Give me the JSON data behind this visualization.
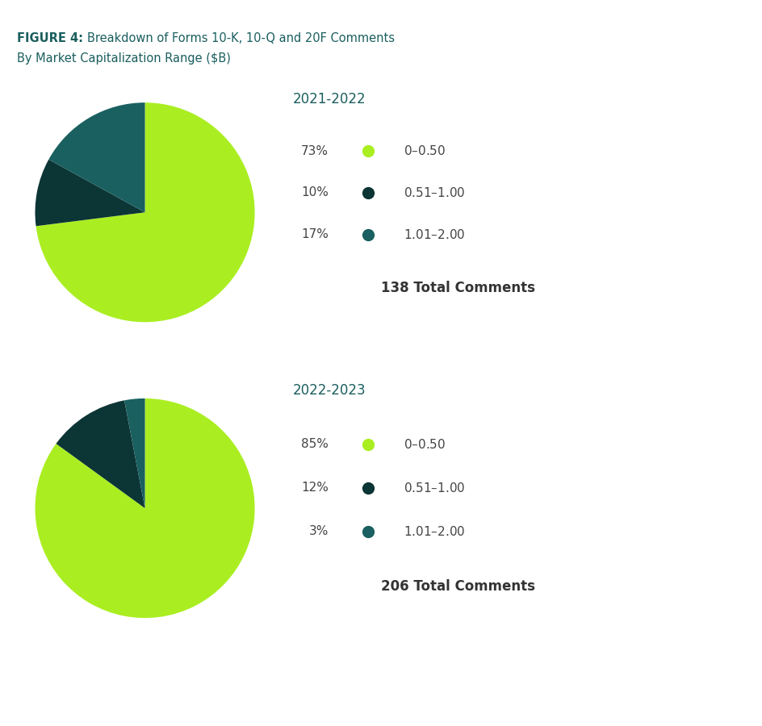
{
  "title_bold": "FIGURE 4:",
  "title_main": "  Breakdown of Forms 10-K, 10-Q and 20F Comments",
  "title_sub": "By Market Capitalization Range ($B)",
  "title_color": "#1b5e5e",
  "text_color": "#444444",
  "background_color": "#ffffff",
  "divider_color": "#c8b89a",
  "chart1": {
    "period": "2021-2022",
    "values": [
      73,
      10,
      17
    ],
    "colors": [
      "#aaee22",
      "#0c3535",
      "#1a6060"
    ],
    "labels": [
      "$0 – $0.50",
      "$0.51 – $1.00",
      "$1.01 – $2.00"
    ],
    "percentages": [
      "73%",
      "10%",
      "17%"
    ],
    "total": "138 Total Comments"
  },
  "chart2": {
    "period": "2022-2023",
    "values": [
      85,
      12,
      3
    ],
    "colors": [
      "#aaee22",
      "#0c3535",
      "#1a6060"
    ],
    "labels": [
      "$0 – $0.50",
      "$0.51 – $1.00",
      "$1.01 – $2.00"
    ],
    "percentages": [
      "85%",
      "12%",
      "3%"
    ],
    "total": "206 Total Comments"
  }
}
